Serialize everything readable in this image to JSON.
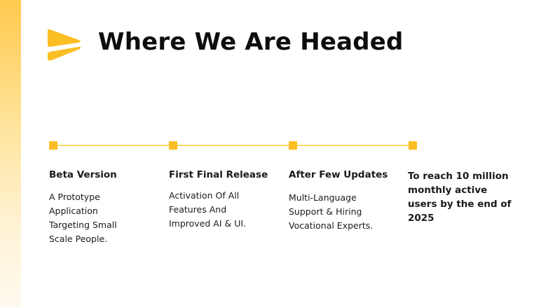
{
  "slide": {
    "title": "Where We Are Headed",
    "accent_color": "#fbbf24",
    "logo_icon": "arrow-chevron-logo"
  },
  "timeline": {
    "milestones": [
      {
        "title": "Beta Version",
        "description": "A Prototype Application Targeting Small Scale People."
      },
      {
        "title": "First Final Release",
        "description": "Activation Of All Features And Improved AI & UI."
      },
      {
        "title": "After Few Updates",
        "description": "Multi-Language Support & Hiring Vocational Experts."
      },
      {
        "title": "To reach 10 million monthly active users by the end of 2025"
      }
    ]
  }
}
